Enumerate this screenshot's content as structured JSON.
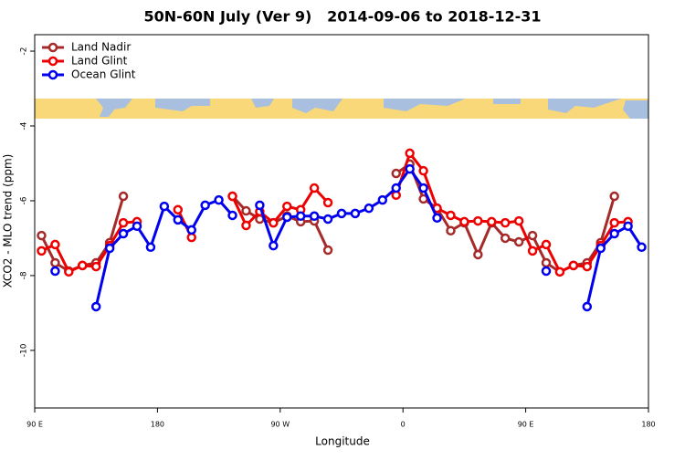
{
  "chart_data": {
    "type": "line",
    "title": "50N-60N July (Ver 9)   2014-09-06 to 2018-12-31",
    "x_label": "Longitude",
    "y_label": "XCO2 - MLO trend (ppm)",
    "x": [
      95,
      105,
      115,
      125,
      135,
      145,
      155,
      165,
      175,
      185,
      195,
      205,
      215,
      225,
      235,
      245,
      255,
      265,
      275,
      285,
      295,
      305,
      315,
      325,
      335,
      345,
      355,
      365,
      375,
      385,
      395,
      405,
      415,
      425,
      435,
      445,
      455,
      465,
      475,
      485,
      495,
      505,
      515,
      525,
      535
    ],
    "series": [
      {
        "name": "Land Nadir",
        "color": "#a52a2a",
        "values": [
          -6.93,
          -7.66,
          -7.88,
          -7.73,
          -7.66,
          -7.12,
          -5.88,
          null,
          null,
          null,
          null,
          null,
          null,
          null,
          -5.88,
          -6.27,
          -6.49,
          -6.59,
          -6.41,
          -6.56,
          -6.54,
          -7.32,
          null,
          null,
          null,
          null,
          -5.27,
          -5.02,
          -5.95,
          -6.2,
          -6.8,
          -6.59,
          -7.44,
          -6.59,
          -7.0,
          -7.1,
          -6.93,
          -7.66,
          -7.9,
          -7.73,
          -7.66,
          -7.12,
          -5.88,
          null,
          null
        ]
      },
      {
        "name": "Land Glint",
        "color": "#ee0000",
        "values": [
          -7.34,
          -7.17,
          -7.9,
          -7.73,
          -7.76,
          -7.2,
          -6.59,
          -6.56,
          null,
          null,
          -6.24,
          -6.98,
          null,
          null,
          -5.88,
          -6.66,
          -6.29,
          -6.59,
          -6.15,
          -6.24,
          -5.66,
          -6.05,
          null,
          null,
          null,
          null,
          -5.85,
          -4.73,
          -5.2,
          -6.2,
          -6.39,
          -6.56,
          -6.54,
          -6.56,
          -6.59,
          -6.54,
          -7.34,
          -7.17,
          -7.9,
          -7.73,
          -7.76,
          -7.2,
          -6.59,
          -6.56,
          null
        ]
      },
      {
        "name": "Ocean Glint",
        "color": "#0000ee",
        "values": [
          null,
          -7.88,
          null,
          null,
          -8.83,
          -7.27,
          -6.88,
          -6.68,
          -7.24,
          -6.15,
          -6.51,
          -6.78,
          -6.12,
          -5.98,
          -6.39,
          null,
          -6.12,
          -7.2,
          -6.44,
          -6.41,
          -6.41,
          -6.49,
          -6.34,
          -6.34,
          -6.2,
          -5.98,
          -5.66,
          -5.15,
          -5.66,
          -6.46,
          null,
          null,
          null,
          null,
          null,
          null,
          null,
          -7.88,
          null,
          null,
          -8.83,
          -7.27,
          -6.88,
          -6.68,
          -7.24
        ]
      }
    ],
    "xlim": [
      90,
      540
    ],
    "xticks": [
      {
        "value": 90,
        "label": "90 E"
      },
      180,
      {
        "value": 270,
        "label": "90 W"
      },
      {
        "value": 360,
        "label": "0"
      },
      {
        "value": 450,
        "label": "90 E"
      },
      {
        "value": 540,
        "label": "180"
      }
    ],
    "ylim": [
      -11.54,
      -1.56
    ],
    "yticks": [
      -2,
      -4,
      -6,
      -8,
      -10
    ],
    "legend": "top-left"
  }
}
